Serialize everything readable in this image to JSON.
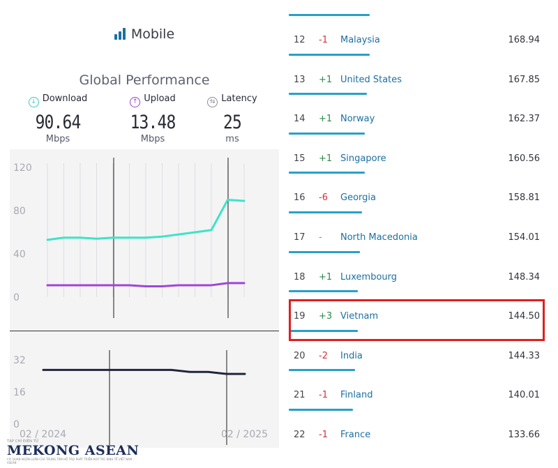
{
  "header": {
    "title": "Mobile"
  },
  "performance": {
    "title": "Global Performance",
    "download": {
      "label": "Download",
      "value": "90.64",
      "unit": "Mbps",
      "color": "#3dc8c0"
    },
    "upload": {
      "label": "Upload",
      "value": "13.48",
      "unit": "Mbps",
      "color": "#9b3fd1"
    },
    "latency": {
      "label": "Latency",
      "value": "25",
      "unit": "ms",
      "color": "#8a8a95"
    }
  },
  "chart_data": [
    {
      "type": "line",
      "ylim": [
        0,
        120
      ],
      "yticks": [
        "120",
        "80",
        "40",
        "0"
      ],
      "series": [
        {
          "name": "Download",
          "color": "#3ee3c8",
          "values": [
            53,
            55,
            55,
            54,
            55,
            55,
            55,
            56,
            58,
            60,
            62,
            90,
            89
          ]
        },
        {
          "name": "Upload",
          "color": "#a045d8",
          "values": [
            11,
            11,
            11,
            11,
            11,
            11,
            10,
            10,
            11,
            11,
            11,
            13,
            13
          ]
        }
      ]
    },
    {
      "type": "line",
      "ylim": [
        0,
        32
      ],
      "yticks": [
        "32",
        "16",
        "0"
      ],
      "xticks": [
        "02 / 2024",
        "02 / 2025"
      ],
      "series": [
        {
          "name": "Latency",
          "color": "#23263a",
          "values": [
            27,
            27,
            27,
            27,
            27,
            27,
            27,
            27,
            26,
            26,
            25,
            25
          ]
        }
      ]
    }
  ],
  "ranking": {
    "rows": [
      {
        "rank": "12",
        "change": "-1",
        "dir": "neg",
        "country": "Malaysia",
        "speed": "168.94",
        "bar": 0.34
      },
      {
        "rank": "13",
        "change": "+1",
        "dir": "pos",
        "country": "United States",
        "speed": "167.85",
        "bar": 0.34
      },
      {
        "rank": "14",
        "change": "+1",
        "dir": "pos",
        "country": "Norway",
        "speed": "162.37",
        "bar": 0.33
      },
      {
        "rank": "15",
        "change": "+1",
        "dir": "pos",
        "country": "Singapore",
        "speed": "160.56",
        "bar": 0.32
      },
      {
        "rank": "16",
        "change": "-6",
        "dir": "neg",
        "country": "Georgia",
        "speed": "158.81",
        "bar": 0.32
      },
      {
        "rank": "17",
        "change": "-",
        "dir": "neu",
        "country": "North Macedonia",
        "speed": "154.01",
        "bar": 0.31
      },
      {
        "rank": "18",
        "change": "+1",
        "dir": "pos",
        "country": "Luxembourg",
        "speed": "148.34",
        "bar": 0.3
      },
      {
        "rank": "19",
        "change": "+3",
        "dir": "pos",
        "country": "Vietnam",
        "speed": "144.50",
        "bar": 0.29
      },
      {
        "rank": "20",
        "change": "-2",
        "dir": "neg",
        "country": "India",
        "speed": "144.33",
        "bar": 0.29
      },
      {
        "rank": "21",
        "change": "-1",
        "dir": "neg",
        "country": "Finland",
        "speed": "140.01",
        "bar": 0.28
      },
      {
        "rank": "22",
        "change": "-1",
        "dir": "neg",
        "country": "France",
        "speed": "133.66",
        "bar": 0.27
      }
    ]
  },
  "watermark": {
    "tagline": "TẠP CHÍ ĐIỆN TỬ",
    "brand": "MEKONG ASEAN",
    "subline": "CƠ QUAN NGÔN LUẬN CỦA TRUNG TÂM HỖ TRỢ PHÁT TRIỂN HỢP TÁC KINH TẾ VIỆT NAM - ASEAN"
  }
}
